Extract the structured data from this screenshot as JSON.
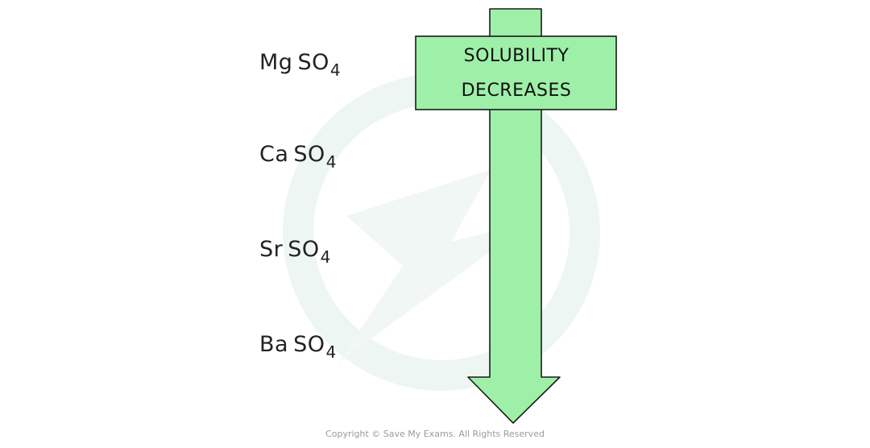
{
  "compounds": [
    {
      "metal": "Mg",
      "anion": "SO",
      "sub": "4"
    },
    {
      "metal": "Ca",
      "anion": "SO",
      "sub": "4"
    },
    {
      "metal": "Sr",
      "anion": "SO",
      "sub": "4"
    },
    {
      "metal": "Ba",
      "anion": "SO",
      "sub": "4"
    }
  ],
  "arrow": {
    "label_line1": "SOLUBILITY",
    "label_line2": "DECREASES",
    "fill": "#9ef0a8",
    "stroke": "#1a1a1a"
  },
  "watermark": {
    "icon": "save-my-exams-logo-icon",
    "color": "#eef6f3"
  },
  "copyright": "Copyright © Save My Exams. All Rights Reserved"
}
